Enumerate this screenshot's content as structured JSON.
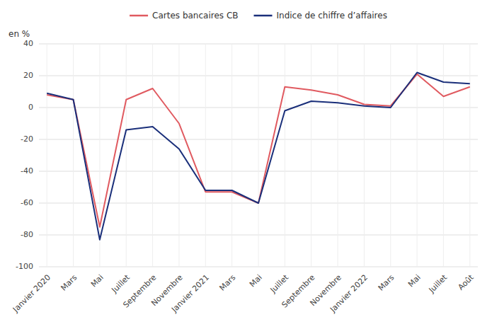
{
  "chart_data": {
    "type": "line",
    "y_label": "en %",
    "categories": [
      "Janvier 2020",
      "Mars",
      "Mai",
      "Juillet",
      "Septembre",
      "Novembre",
      "Janvier 2021",
      "Mars",
      "Mai",
      "Juillet",
      "Septembre",
      "Novembre",
      "Janvier 2022",
      "Mars",
      "Mai",
      "Juillet",
      "Août"
    ],
    "series": [
      {
        "name": "Cartes bancaires CB",
        "color": "#e05a60",
        "values": [
          8,
          5,
          -75,
          5,
          12,
          -10,
          -53,
          -53,
          -60,
          13,
          11,
          8,
          2,
          1,
          21,
          7,
          13
        ]
      },
      {
        "name": "Indice de chiffre d’affaires",
        "color": "#1a2f7a",
        "values": [
          9,
          5,
          -83,
          -14,
          -12,
          -26,
          -52,
          -52,
          -60,
          -2,
          4,
          3,
          1,
          0,
          22,
          16,
          15
        ]
      }
    ],
    "ylim": [
      -100,
      40
    ],
    "yticks": [
      -100,
      -80,
      -60,
      -40,
      -20,
      0,
      20,
      40
    ],
    "grid": true,
    "legend": "top"
  }
}
